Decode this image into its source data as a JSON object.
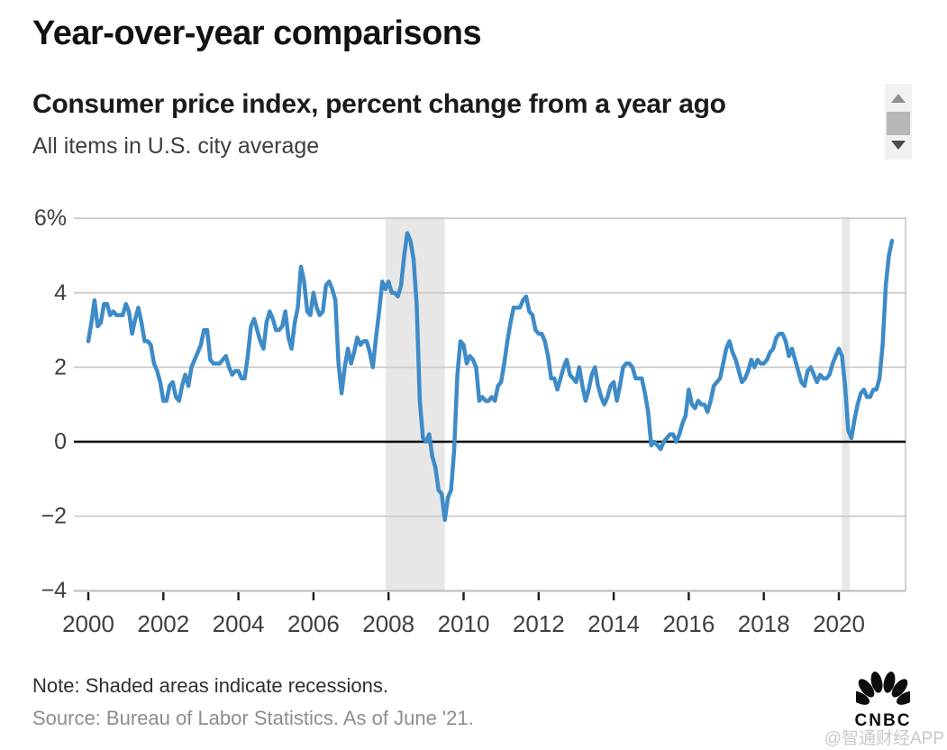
{
  "header": {
    "title": "Year-over-year comparisons",
    "subtitle": "Consumer price index, percent change from a year ago",
    "description": "All items in U.S. city average"
  },
  "footer": {
    "note": "Note: Shaded areas indicate recessions.",
    "source": "Source: Bureau of Labor Statistics. As of June '21.",
    "watermark": "@智通财经APP",
    "logo_text": "CNBC"
  },
  "scrollbar": {
    "up_icon": "triangle-up",
    "down_icon": "triangle-down"
  },
  "colors": {
    "line": "#3e8bc7",
    "recession_band": "#e7e7e7",
    "gridline": "#cccccc",
    "zero_line": "#000000",
    "axis_line": "#b9b9b9",
    "tick_mark": "#1a1a1a",
    "axis_label": "#3f3f3f"
  },
  "chart_data": {
    "type": "line",
    "title": "Consumer price index, percent change from a year ago",
    "subtitle": "All items in U.S. city average",
    "unit": "percent change from a year ago",
    "frequency": "monthly",
    "start": "2000-01",
    "end": "2021-06",
    "ylim": [
      -4,
      6
    ],
    "grid": true,
    "legend": "none",
    "y_ticks": [
      {
        "value": 6,
        "label": "6%"
      },
      {
        "value": 4,
        "label": "4"
      },
      {
        "value": 2,
        "label": "2"
      },
      {
        "value": 0,
        "label": "0"
      },
      {
        "value": -2,
        "label": "−2"
      },
      {
        "value": -4,
        "label": "−4"
      }
    ],
    "x_ticks": [
      {
        "year": 2000,
        "label": "2000"
      },
      {
        "year": 2002,
        "label": "2002"
      },
      {
        "year": 2004,
        "label": "2004"
      },
      {
        "year": 2006,
        "label": "2006"
      },
      {
        "year": 2008,
        "label": "2008"
      },
      {
        "year": 2010,
        "label": "2010"
      },
      {
        "year": 2012,
        "label": "2012"
      },
      {
        "year": 2014,
        "label": "2014"
      },
      {
        "year": 2016,
        "label": "2016"
      },
      {
        "year": 2018,
        "label": "2018"
      },
      {
        "year": 2020,
        "label": "2020"
      }
    ],
    "recession_bands": [
      {
        "from_year": 2007.92,
        "to_year": 2009.5
      },
      {
        "from_year": 2020.08,
        "to_year": 2020.29
      }
    ],
    "series": [
      {
        "name": "CPI, all items in U.S. city average, YoY % change",
        "color": "#3e8bc7",
        "start_year": 2000,
        "start_month": 1,
        "values": [
          2.7,
          3.2,
          3.8,
          3.1,
          3.2,
          3.7,
          3.7,
          3.4,
          3.5,
          3.4,
          3.4,
          3.4,
          3.7,
          3.5,
          2.9,
          3.3,
          3.6,
          3.2,
          2.7,
          2.7,
          2.6,
          2.1,
          1.9,
          1.6,
          1.1,
          1.1,
          1.5,
          1.6,
          1.2,
          1.1,
          1.5,
          1.8,
          1.5,
          2.0,
          2.2,
          2.4,
          2.6,
          3.0,
          3.0,
          2.2,
          2.1,
          2.1,
          2.1,
          2.2,
          2.3,
          2.0,
          1.8,
          1.9,
          1.9,
          1.7,
          1.7,
          2.3,
          3.1,
          3.3,
          3.0,
          2.7,
          2.5,
          3.2,
          3.5,
          3.3,
          3.0,
          3.0,
          3.1,
          3.5,
          2.8,
          2.5,
          3.2,
          3.6,
          4.7,
          4.3,
          3.5,
          3.4,
          4.0,
          3.6,
          3.4,
          3.5,
          4.2,
          4.3,
          4.1,
          3.8,
          2.1,
          1.3,
          2.0,
          2.5,
          2.1,
          2.4,
          2.8,
          2.6,
          2.7,
          2.7,
          2.4,
          2.0,
          2.8,
          3.5,
          4.3,
          4.1,
          4.3,
          4.0,
          4.0,
          3.9,
          4.2,
          5.0,
          5.6,
          5.4,
          4.9,
          3.7,
          1.1,
          0.1,
          0.0,
          0.2,
          -0.4,
          -0.7,
          -1.3,
          -1.4,
          -2.1,
          -1.5,
          -1.3,
          -0.2,
          1.8,
          2.7,
          2.6,
          2.1,
          2.3,
          2.2,
          2.0,
          1.1,
          1.2,
          1.1,
          1.1,
          1.2,
          1.1,
          1.5,
          1.6,
          2.1,
          2.7,
          3.2,
          3.6,
          3.6,
          3.6,
          3.8,
          3.9,
          3.5,
          3.4,
          3.0,
          2.9,
          2.9,
          2.7,
          2.3,
          1.7,
          1.7,
          1.4,
          1.7,
          2.0,
          2.2,
          1.8,
          1.7,
          1.6,
          2.0,
          1.5,
          1.1,
          1.4,
          1.8,
          2.0,
          1.5,
          1.2,
          1.0,
          1.2,
          1.5,
          1.6,
          1.1,
          1.5,
          2.0,
          2.1,
          2.1,
          2.0,
          1.7,
          1.7,
          1.7,
          1.3,
          0.8,
          -0.1,
          0.0,
          -0.1,
          -0.2,
          0.0,
          0.1,
          0.2,
          0.2,
          0.0,
          0.2,
          0.5,
          0.7,
          1.4,
          1.0,
          0.9,
          1.1,
          1.0,
          1.0,
          0.8,
          1.1,
          1.5,
          1.6,
          1.7,
          2.1,
          2.5,
          2.7,
          2.4,
          2.2,
          1.9,
          1.6,
          1.7,
          1.9,
          2.2,
          2.0,
          2.2,
          2.1,
          2.1,
          2.2,
          2.4,
          2.5,
          2.8,
          2.9,
          2.9,
          2.7,
          2.3,
          2.5,
          2.2,
          1.9,
          1.6,
          1.5,
          1.9,
          2.0,
          1.8,
          1.6,
          1.8,
          1.7,
          1.7,
          1.8,
          2.1,
          2.3,
          2.5,
          2.3,
          1.5,
          0.3,
          0.1,
          0.6,
          1.0,
          1.3,
          1.4,
          1.2,
          1.2,
          1.4,
          1.4,
          1.7,
          2.6,
          4.2,
          5.0,
          5.4
        ]
      }
    ]
  }
}
